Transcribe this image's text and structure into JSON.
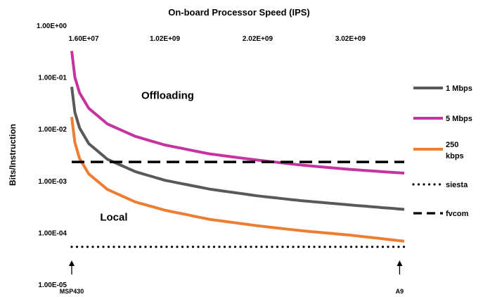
{
  "chart_data": {
    "type": "line",
    "title": "On-board Processor Speed (IPS)",
    "xlabel": "",
    "ylabel": "Bits/Instruction",
    "yscale": "log",
    "ylim": [
      1e-05,
      1
    ],
    "xlim": [
      16000000,
      3600000000
    ],
    "x_axis_position": "top",
    "y_tick_labels": [
      "1.00E+00",
      "1.00E-01",
      "1.00E-02",
      "1.00E-03",
      "1.00E-04",
      "1.00E-05"
    ],
    "x_tick_labels": [
      "1.60E+07",
      "1.02E+09",
      "2.02E+09",
      "3.02E+09"
    ],
    "x_ticks": [
      16000000,
      1020000000,
      2020000000,
      3020000000
    ],
    "grid": false,
    "legend_position": "right",
    "series": [
      {
        "name": "1 Mbps",
        "style": "solid",
        "color": "#595959",
        "x": [
          16000000,
          50000000,
          100000000,
          200000000,
          400000000,
          700000000,
          1020000000,
          1500000000,
          2020000000,
          2500000000,
          3020000000,
          3600000000
        ],
        "y": [
          0.065,
          0.021,
          0.0105,
          0.0052,
          0.0026,
          0.0015,
          0.00102,
          0.00069,
          0.00051,
          0.00041,
          0.00034,
          0.00028
        ]
      },
      {
        "name": "5 Mbps",
        "style": "solid",
        "color": "#c6339e",
        "x": [
          16000000,
          50000000,
          100000000,
          200000000,
          400000000,
          700000000,
          1020000000,
          1500000000,
          2020000000,
          2500000000,
          3020000000,
          3600000000
        ],
        "y": [
          0.32,
          0.1,
          0.05,
          0.025,
          0.0125,
          0.0072,
          0.0049,
          0.0033,
          0.0025,
          0.002,
          0.00165,
          0.0014
        ]
      },
      {
        "name": "250 kbps",
        "style": "solid",
        "color": "#ed7d31",
        "x": [
          16000000,
          50000000,
          100000000,
          200000000,
          400000000,
          700000000,
          1020000000,
          1500000000,
          2020000000,
          2500000000,
          3020000000,
          3600000000
        ],
        "y": [
          0.017,
          0.0055,
          0.0027,
          0.00135,
          0.00068,
          0.00039,
          0.00027,
          0.00018,
          0.000135,
          0.000108,
          8.9e-05,
          6.8e-05
        ]
      },
      {
        "name": "siesta",
        "style": "dotted",
        "color": "#000000",
        "x": [
          16000000,
          3600000000
        ],
        "y": [
          5.3e-05,
          5.3e-05
        ]
      },
      {
        "name": "fvcom",
        "style": "dashed",
        "color": "#000000",
        "x": [
          16000000,
          3600000000
        ],
        "y": [
          0.0023,
          0.0023
        ]
      }
    ],
    "annotations": [
      {
        "text": "Offloading",
        "x": 1050000000,
        "y": 0.038
      },
      {
        "text": "Local",
        "x": 470000000,
        "y": 0.00017
      },
      {
        "text": "MSP430",
        "x": 16000000,
        "y": 1.2e-05,
        "arrow": true
      },
      {
        "text": "A9",
        "x": 3550000000,
        "y": 1.2e-05,
        "arrow": true
      }
    ]
  }
}
